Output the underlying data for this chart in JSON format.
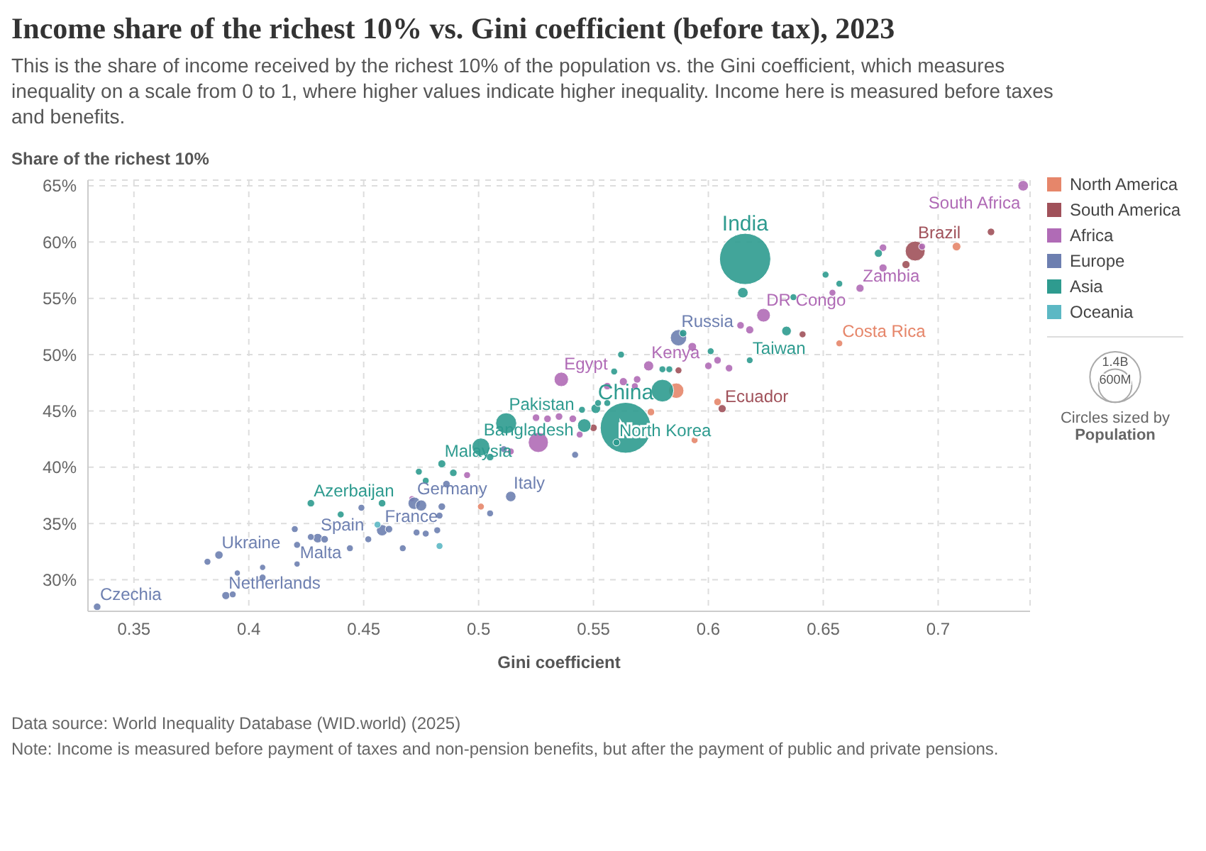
{
  "chart_data": {
    "type": "bubble",
    "title": "Income share of the richest 10% vs. Gini coefficient (before tax), 2023",
    "subtitle": "This is the share of income received by the richest 10% of the population vs. the Gini coefficient, which measures inequality on a scale from 0 to 1, where higher values indicate higher inequality. Income here is measured before taxes and benefits.",
    "xlabel": "Gini coefficient",
    "ylabel": "Share of the richest 10%",
    "xlim": [
      0.33,
      0.74
    ],
    "xticks": [
      0.35,
      0.4,
      0.45,
      0.5,
      0.55,
      0.6,
      0.65,
      0.7
    ],
    "ylim": [
      27.2,
      65.5
    ],
    "yticks": [
      {
        "value": 30,
        "label": "30%"
      },
      {
        "value": 35,
        "label": "35%"
      },
      {
        "value": 40,
        "label": "40%"
      },
      {
        "value": 45,
        "label": "45%"
      },
      {
        "value": 50,
        "label": "50%"
      },
      {
        "value": 55,
        "label": "55%"
      },
      {
        "value": 60,
        "label": "60%"
      },
      {
        "value": 65,
        "label": "65%"
      }
    ],
    "grid": true,
    "legend": "right",
    "marker": "circle",
    "size_legend": [
      {
        "value": 1400,
        "label": "1.4B"
      },
      {
        "value": 600,
        "label": "600M"
      }
    ],
    "series": [
      {
        "name": "North America",
        "color": "#e6866a",
        "x": [
          0.501,
          0.586,
          0.575,
          0.594,
          0.657,
          0.604,
          0.708
        ],
        "values": [
          36.5,
          46.8,
          44.9,
          42.4,
          51.0,
          45.8,
          59.6
        ],
        "sizes": [
          25,
          128,
          30,
          25,
          25,
          30,
          40
        ]
      },
      {
        "name": "South America",
        "color": "#a0515a",
        "x": [
          0.55,
          0.587,
          0.606,
          0.641,
          0.69,
          0.686,
          0.723
        ],
        "values": [
          43.5,
          48.6,
          45.2,
          51.8,
          59.2,
          58.0,
          60.9
        ],
        "sizes": [
          30,
          25,
          35,
          25,
          216,
          35,
          30
        ]
      },
      {
        "name": "Africa",
        "color": "#b06bb6",
        "x": [
          0.471,
          0.495,
          0.514,
          0.526,
          0.525,
          0.53,
          0.535,
          0.541,
          0.536,
          0.544,
          0.556,
          0.563,
          0.569,
          0.568,
          0.574,
          0.593,
          0.6,
          0.604,
          0.609,
          0.614,
          0.618,
          0.624,
          0.654,
          0.666,
          0.676,
          0.676,
          0.693,
          0.737
        ],
        "values": [
          37.2,
          39.3,
          41.4,
          42.2,
          44.4,
          44.3,
          44.5,
          44.3,
          47.8,
          42.9,
          47.2,
          47.6,
          47.8,
          47.2,
          49.0,
          50.7,
          49.0,
          49.5,
          48.8,
          52.6,
          52.2,
          53.5,
          55.5,
          55.9,
          59.5,
          57.7,
          59.6,
          65.0
        ],
        "sizes": [
          20,
          25,
          25,
          220,
          30,
          30,
          30,
          30,
          113,
          25,
          30,
          35,
          30,
          25,
          55,
          40,
          30,
          30,
          30,
          30,
          35,
          102,
          25,
          35,
          30,
          35,
          25,
          60
        ]
      },
      {
        "name": "Europe",
        "color": "#6d7fb0",
        "x": [
          0.334,
          0.39,
          0.393,
          0.395,
          0.406,
          0.406,
          0.387,
          0.382,
          0.421,
          0.421,
          0.42,
          0.43,
          0.427,
          0.433,
          0.444,
          0.452,
          0.449,
          0.458,
          0.461,
          0.467,
          0.472,
          0.475,
          0.473,
          0.477,
          0.484,
          0.483,
          0.482,
          0.486,
          0.505,
          0.514,
          0.511,
          0.542,
          0.587
        ],
        "values": [
          27.6,
          28.6,
          28.7,
          30.6,
          30.2,
          31.1,
          32.2,
          31.6,
          31.4,
          33.1,
          34.5,
          33.7,
          33.8,
          33.6,
          32.8,
          33.6,
          36.4,
          34.4,
          34.5,
          32.8,
          36.8,
          36.6,
          34.2,
          34.1,
          36.5,
          35.7,
          34.4,
          38.5,
          35.9,
          37.4,
          41.6,
          41.1,
          51.5
        ],
        "sizes": [
          30,
          35,
          25,
          20,
          25,
          20,
          37,
          25,
          20,
          25,
          25,
          48,
          25,
          30,
          25,
          25,
          25,
          68,
          30,
          25,
          84,
          67,
          25,
          25,
          30,
          25,
          25,
          30,
          25,
          59,
          25,
          25,
          144
        ]
      },
      {
        "name": "Asia",
        "color": "#2e9b8f",
        "x": [
          0.427,
          0.44,
          0.458,
          0.474,
          0.477,
          0.484,
          0.489,
          0.501,
          0.505,
          0.512,
          0.545,
          0.551,
          0.546,
          0.552,
          0.556,
          0.559,
          0.562,
          0.564,
          0.56,
          0.58,
          0.58,
          0.583,
          0.589,
          0.601,
          0.618,
          0.615,
          0.616,
          0.634,
          0.637,
          0.651,
          0.657,
          0.674
        ],
        "values": [
          36.8,
          35.8,
          36.8,
          39.6,
          38.8,
          40.3,
          39.5,
          41.8,
          40.9,
          43.9,
          45.1,
          45.2,
          43.7,
          45.7,
          45.7,
          48.5,
          50.0,
          43.5,
          42.2,
          46.8,
          48.7,
          48.7,
          51.9,
          50.3,
          49.5,
          55.5,
          58.5,
          52.1,
          55.1,
          57.1,
          56.3,
          59.0
        ],
        "sizes": [
          30,
          25,
          30,
          25,
          25,
          34,
          30,
          172,
          30,
          240,
          25,
          50,
          100,
          25,
          25,
          25,
          25,
          1410,
          26,
          278,
          25,
          25,
          30,
          25,
          24,
          60,
          1430,
          50,
          25,
          25,
          25,
          35
        ]
      },
      {
        "name": "Oceania",
        "color": "#5cb8c4",
        "x": [
          0.456,
          0.483
        ],
        "values": [
          34.9,
          33.0
        ],
        "sizes": [
          25,
          25
        ]
      }
    ],
    "annotations": [
      "Circles sized by",
      "Population",
      "Data source: World Inequality Database (WID.world) (2025)",
      "Note: Income is measured before payment of taxes and non-pension benefits, but after the payment of public and private pensions.",
      {
        "text": "Czechia",
        "x": 0.334,
        "y": 27.6
      },
      {
        "text": "Netherlands",
        "x": 0.39,
        "y": 28.6
      },
      {
        "text": "Ukraine",
        "x": 0.387,
        "y": 32.2
      },
      {
        "text": "Malta",
        "x": 0.421,
        "y": 31.4
      },
      {
        "text": "Spain",
        "x": 0.43,
        "y": 33.7
      },
      {
        "text": "Azerbaijan",
        "x": 0.427,
        "y": 36.8
      },
      {
        "text": "France",
        "x": 0.458,
        "y": 34.4
      },
      {
        "text": "Germany",
        "x": 0.472,
        "y": 36.8
      },
      {
        "text": "Italy",
        "x": 0.514,
        "y": 37.4
      },
      {
        "text": "Malaysia",
        "x": 0.484,
        "y": 40.3
      },
      {
        "text": "Bangladesh",
        "x": 0.501,
        "y": 41.8
      },
      {
        "text": "Pakistan",
        "x": 0.512,
        "y": 43.9
      },
      {
        "text": "Egypt",
        "x": 0.536,
        "y": 47.8
      },
      {
        "text": "North Korea",
        "x": 0.56,
        "y": 42.2
      },
      {
        "text": "China",
        "x": 0.564,
        "y": 43.5
      },
      {
        "text": "Kenya",
        "x": 0.574,
        "y": 49.0
      },
      {
        "text": "Russia",
        "x": 0.587,
        "y": 51.5
      },
      {
        "text": "Ecuador",
        "x": 0.606,
        "y": 45.2
      },
      {
        "text": "Taiwan",
        "x": 0.618,
        "y": 49.5
      },
      {
        "text": "DR Congo",
        "x": 0.624,
        "y": 53.5
      },
      {
        "text": "India",
        "x": 0.616,
        "y": 58.5
      },
      {
        "text": "Costa Rica",
        "x": 0.657,
        "y": 51.0
      },
      {
        "text": "Zambia",
        "x": 0.666,
        "y": 55.9
      },
      {
        "text": "Brazil",
        "x": 0.69,
        "y": 59.2
      },
      {
        "text": "South Africa",
        "x": 0.737,
        "y": 65.0
      }
    ]
  }
}
